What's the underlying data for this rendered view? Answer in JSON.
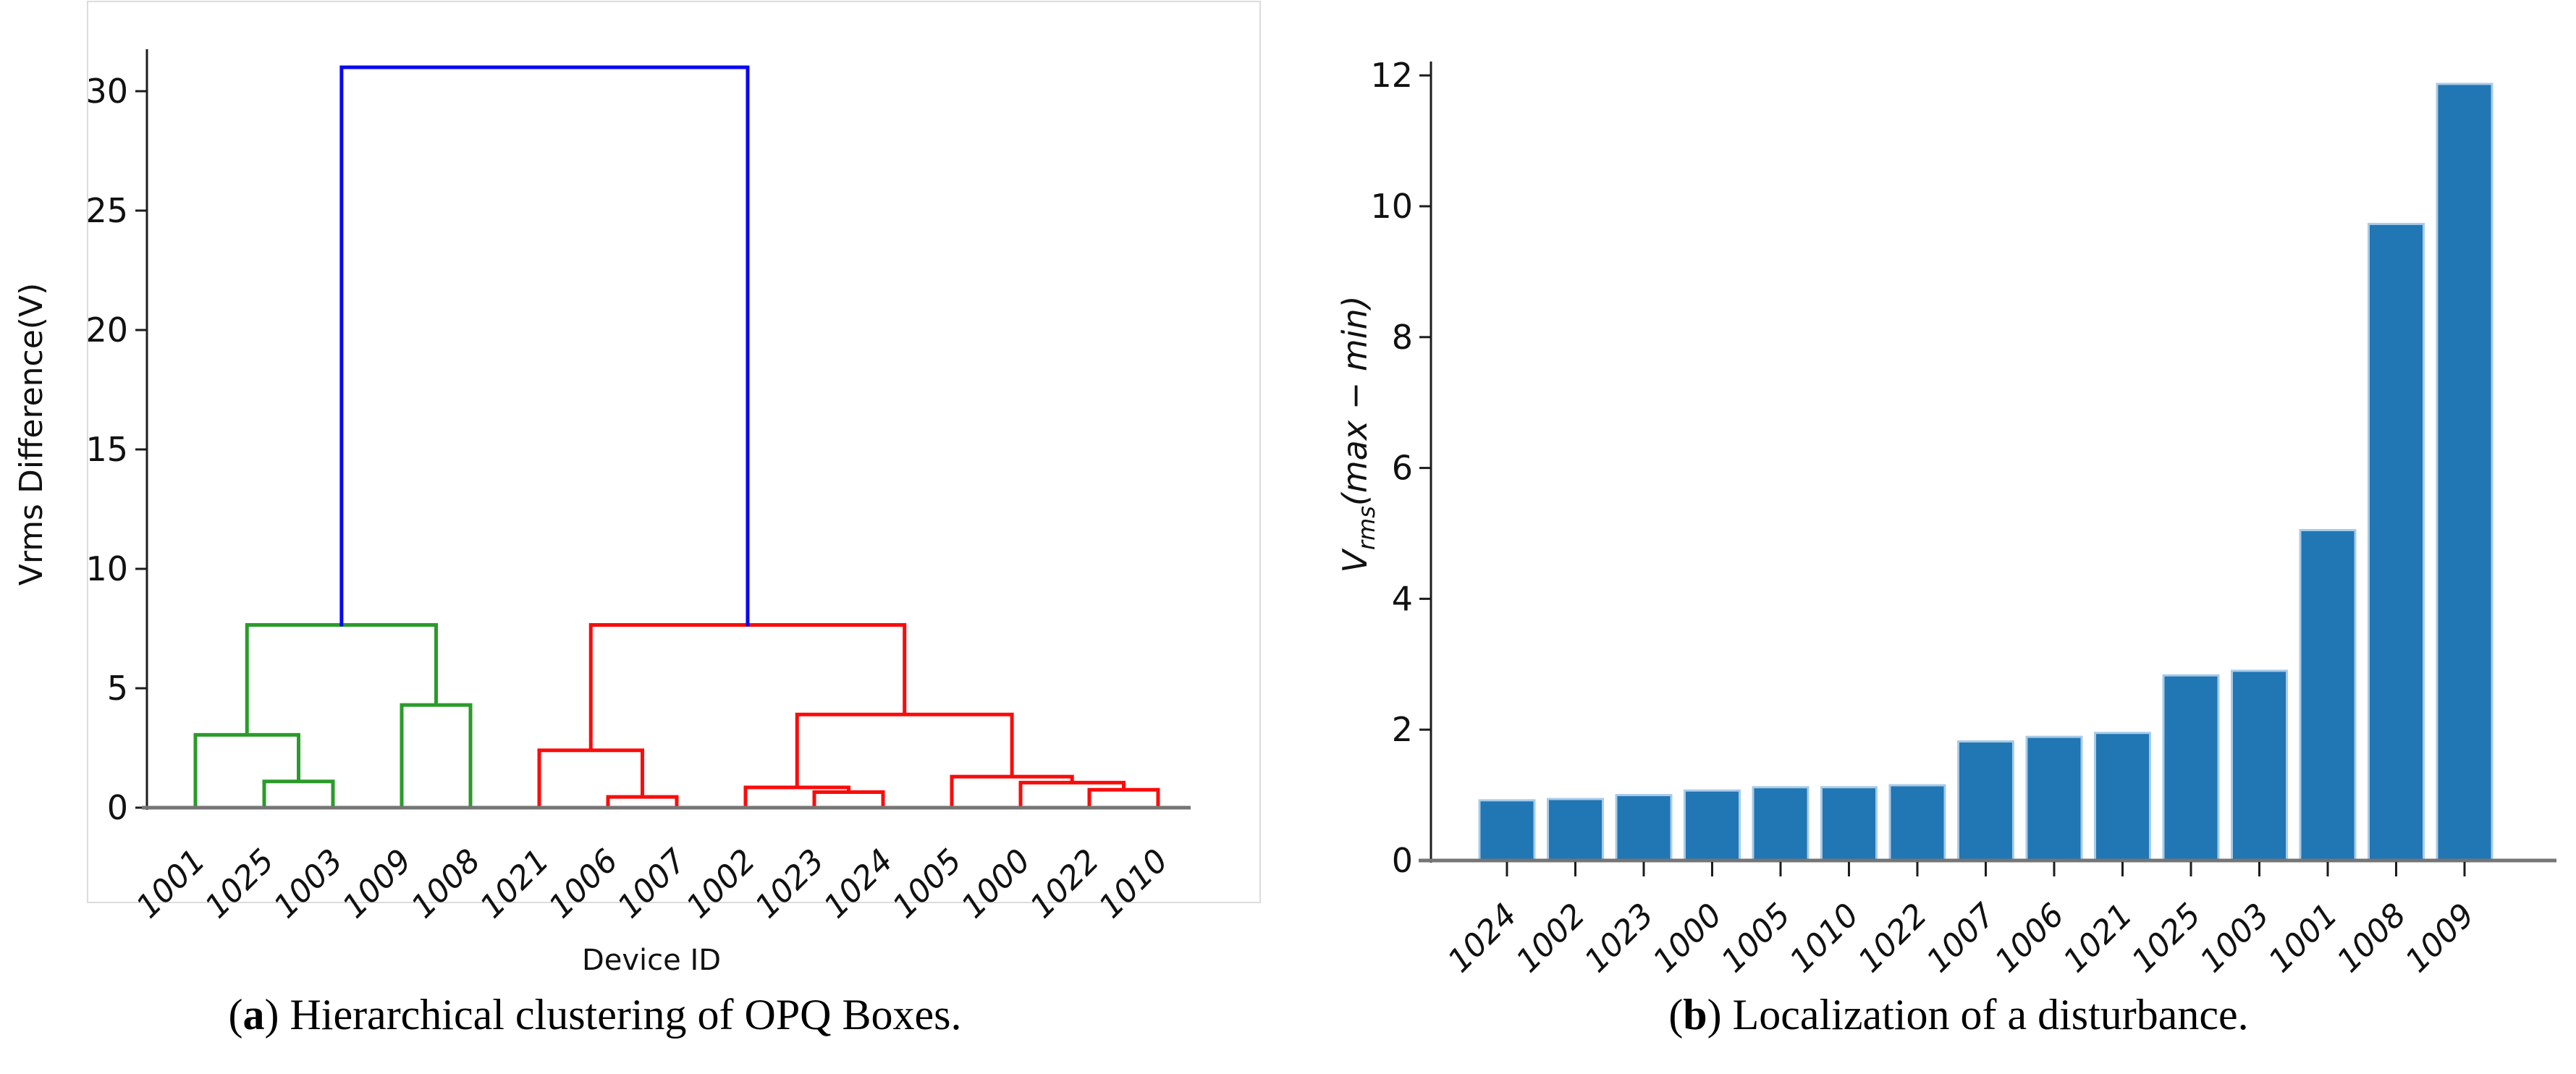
{
  "captions": {
    "a": {
      "open": "(",
      "label": "a",
      "rest": ") Hierarchical clustering of OPQ Boxes."
    },
    "b": {
      "open": "(",
      "label": "b",
      "rest": ") Localization of a disturbance."
    }
  },
  "colors": {
    "spine": "#1c1c1c",
    "axis_line": "#757575",
    "text": "#111111",
    "figure_border": "#dcdcdc"
  },
  "chart_data": [
    {
      "type": "dendrogram",
      "panel": "a",
      "xlabel": "Device ID",
      "ylabel": "Vrms Difference(V)",
      "ylim": [
        0,
        32
      ],
      "yticks": [
        0,
        5,
        10,
        15,
        20,
        25,
        30
      ],
      "leaves": [
        "1001",
        "1025",
        "1003",
        "1009",
        "1008",
        "1021",
        "1006",
        "1007",
        "1002",
        "1023",
        "1024",
        "1005",
        "1000",
        "1022",
        "1010"
      ],
      "link_colors": {
        "green": "#2a9b2a",
        "red": "#fb0b0b",
        "blue": "#0808f0"
      },
      "merges": [
        {
          "left": "L1",
          "right": "L2",
          "height": 1.1,
          "color": "green"
        },
        {
          "left": "L0",
          "right": "M0",
          "height": 3.05,
          "color": "green"
        },
        {
          "left": "L3",
          "right": "L4",
          "height": 4.3,
          "color": "green"
        },
        {
          "left": "M1",
          "right": "M2",
          "height": 7.65,
          "color": "green"
        },
        {
          "left": "L6",
          "right": "L7",
          "height": 0.45,
          "color": "red"
        },
        {
          "left": "L5",
          "right": "M4",
          "height": 2.4,
          "color": "red"
        },
        {
          "left": "L9",
          "right": "L10",
          "height": 0.65,
          "color": "red"
        },
        {
          "left": "L8",
          "right": "M6",
          "height": 0.85,
          "color": "red"
        },
        {
          "left": "L13",
          "right": "L14",
          "height": 0.75,
          "color": "red"
        },
        {
          "left": "L12",
          "right": "M8",
          "height": 1.05,
          "color": "red"
        },
        {
          "left": "L11",
          "right": "M9",
          "height": 1.3,
          "color": "red"
        },
        {
          "left": "M7",
          "right": "M10",
          "height": 3.9,
          "color": "red"
        },
        {
          "left": "M5",
          "right": "M11",
          "height": 7.65,
          "color": "red"
        },
        {
          "left": "M3",
          "right": "M12",
          "height": 31.0,
          "color": "blue"
        }
      ]
    },
    {
      "type": "bar",
      "panel": "b",
      "ylabel_main": "V",
      "ylabel_sub": "rms",
      "ylabel_rest": "(max − min)",
      "ylim": [
        0,
        12.2
      ],
      "yticks": [
        0,
        2,
        4,
        6,
        8,
        10,
        12
      ],
      "categories": [
        "1024",
        "1002",
        "1023",
        "1000",
        "1005",
        "1010",
        "1022",
        "1007",
        "1006",
        "1021",
        "1025",
        "1003",
        "1001",
        "1008",
        "1009"
      ],
      "values": [
        0.92,
        0.94,
        1.0,
        1.07,
        1.12,
        1.12,
        1.15,
        1.82,
        1.89,
        1.95,
        2.83,
        2.9,
        5.05,
        9.73,
        11.87
      ],
      "bar_fill": "#2176b4",
      "bar_edge": "#a8cbe8"
    }
  ]
}
